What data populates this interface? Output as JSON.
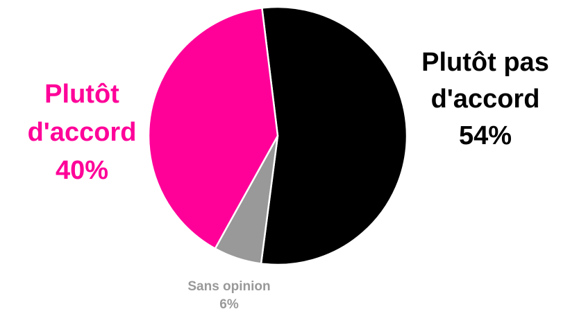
{
  "chart_data": {
    "type": "pie",
    "slices": [
      {
        "name_lines": [
          "Plutôt pas",
          "d'accord"
        ],
        "value": 54,
        "value_label": "54%",
        "color": "#000000"
      },
      {
        "name_lines": [
          "Sans opinion"
        ],
        "value": 6,
        "value_label": "6%",
        "color": "#999999"
      },
      {
        "name_lines": [
          "Plutôt",
          "d'accord"
        ],
        "value": 40,
        "value_label": "40%",
        "color": "#ff0099"
      }
    ],
    "start": "top, slightly left of center",
    "direction": "clockwise",
    "legend": "none"
  }
}
